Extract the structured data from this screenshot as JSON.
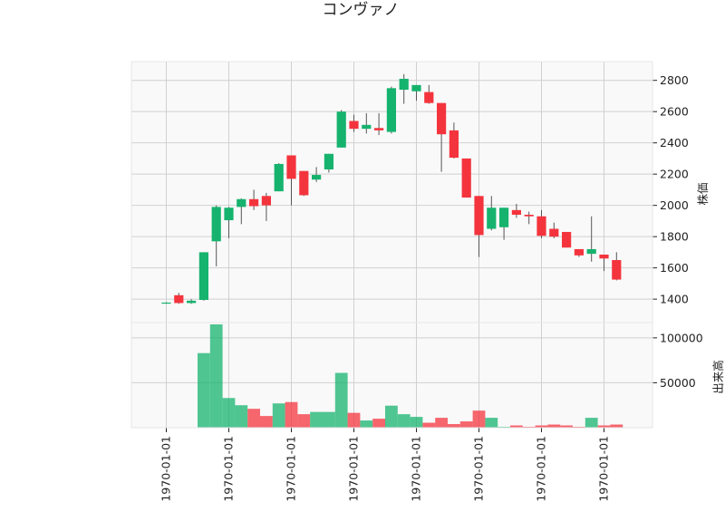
{
  "chart_data": {
    "type": "candlestick",
    "title": "コンヴァノ",
    "price_panel": {
      "ylabel": "株価",
      "ylim": [
        1250,
        2920
      ],
      "yticks": [
        1400,
        1600,
        1800,
        2000,
        2200,
        2400,
        2600,
        2800
      ],
      "grid": true
    },
    "volume_panel": {
      "ylabel": "出来高",
      "ylim": [
        0,
        117000
      ],
      "yticks": [
        50000,
        100000
      ],
      "grid": true
    },
    "x_tick_labels": [
      "1970-01-01",
      "1970-01-01",
      "1970-01-01",
      "1970-01-01",
      "1970-01-01",
      "1970-01-01",
      "1970-01-01",
      "1970-01-01"
    ],
    "x_tick_positions": [
      0,
      5,
      10,
      15,
      20,
      25,
      30,
      35
    ],
    "colors": {
      "up": "#16b36e",
      "down": "#f4343d",
      "wick": "#555555",
      "panel_bg": "#f9f9f9",
      "grid": "#d0d0d0"
    },
    "candles": [
      {
        "open": 1375,
        "high": 1380,
        "low": 1370,
        "close": 1378,
        "volume": 500
      },
      {
        "open": 1425,
        "high": 1440,
        "low": 1370,
        "close": 1375,
        "volume": 200
      },
      {
        "open": 1375,
        "high": 1400,
        "low": 1370,
        "close": 1390,
        "volume": 200
      },
      {
        "open": 1395,
        "high": 1700,
        "low": 1390,
        "close": 1700,
        "volume": 83000
      },
      {
        "open": 1770,
        "high": 2000,
        "low": 1610,
        "close": 1990,
        "volume": 115000
      },
      {
        "open": 1905,
        "high": 1990,
        "low": 1790,
        "close": 1985,
        "volume": 33000
      },
      {
        "open": 1990,
        "high": 2045,
        "low": 1880,
        "close": 2040,
        "volume": 25000
      },
      {
        "open": 2040,
        "high": 2100,
        "low": 1970,
        "close": 1995,
        "volume": 21000
      },
      {
        "open": 2060,
        "high": 2080,
        "low": 1900,
        "close": 2000,
        "volume": 13000
      },
      {
        "open": 2090,
        "high": 2270,
        "low": 2090,
        "close": 2265,
        "volume": 27000
      },
      {
        "open": 2320,
        "high": 2320,
        "low": 2000,
        "close": 2170,
        "volume": 28500
      },
      {
        "open": 2220,
        "high": 2220,
        "low": 2060,
        "close": 2065,
        "volume": 15000
      },
      {
        "open": 2165,
        "high": 2245,
        "low": 2150,
        "close": 2195,
        "volume": 17500
      },
      {
        "open": 2230,
        "high": 2330,
        "low": 2210,
        "close": 2330,
        "volume": 17500
      },
      {
        "open": 2370,
        "high": 2610,
        "low": 2370,
        "close": 2600,
        "volume": 61000
      },
      {
        "open": 2540,
        "high": 2580,
        "low": 2470,
        "close": 2490,
        "volume": 16500
      },
      {
        "open": 2490,
        "high": 2590,
        "low": 2460,
        "close": 2515,
        "volume": 8000
      },
      {
        "open": 2495,
        "high": 2590,
        "low": 2450,
        "close": 2480,
        "volume": 10000
      },
      {
        "open": 2470,
        "high": 2760,
        "low": 2460,
        "close": 2750,
        "volume": 24500
      },
      {
        "open": 2740,
        "high": 2840,
        "low": 2650,
        "close": 2810,
        "volume": 15000
      },
      {
        "open": 2730,
        "high": 2770,
        "low": 2670,
        "close": 2770,
        "volume": 12000
      },
      {
        "open": 2725,
        "high": 2770,
        "low": 2650,
        "close": 2655,
        "volume": 5500
      },
      {
        "open": 2655,
        "high": 2655,
        "low": 2215,
        "close": 2455,
        "volume": 11000
      },
      {
        "open": 2480,
        "high": 2530,
        "low": 2300,
        "close": 2305,
        "volume": 4000
      },
      {
        "open": 2300,
        "high": 2300,
        "low": 2050,
        "close": 2050,
        "volume": 7000
      },
      {
        "open": 2060,
        "high": 2060,
        "low": 1670,
        "close": 1810,
        "volume": 19000
      },
      {
        "open": 1850,
        "high": 2060,
        "low": 1840,
        "close": 1985,
        "volume": 11000
      },
      {
        "open": 1860,
        "high": 1985,
        "low": 1780,
        "close": 1985,
        "volume": 1000
      },
      {
        "open": 1970,
        "high": 2010,
        "low": 1920,
        "close": 1940,
        "volume": 2500
      },
      {
        "open": 1940,
        "high": 1960,
        "low": 1880,
        "close": 1930,
        "volume": 1000
      },
      {
        "open": 1930,
        "high": 1970,
        "low": 1790,
        "close": 1805,
        "volume": 2500
      },
      {
        "open": 1850,
        "high": 1890,
        "low": 1790,
        "close": 1800,
        "volume": 3500
      },
      {
        "open": 1830,
        "high": 1830,
        "low": 1730,
        "close": 1730,
        "volume": 2500
      },
      {
        "open": 1720,
        "high": 1720,
        "low": 1670,
        "close": 1680,
        "volume": 1000
      },
      {
        "open": 1690,
        "high": 1930,
        "low": 1640,
        "close": 1720,
        "volume": 11000
      },
      {
        "open": 1685,
        "high": 1685,
        "low": 1580,
        "close": 1660,
        "volume": 2500
      },
      {
        "open": 1650,
        "high": 1700,
        "low": 1520,
        "close": 1525,
        "volume": 3500
      }
    ]
  }
}
